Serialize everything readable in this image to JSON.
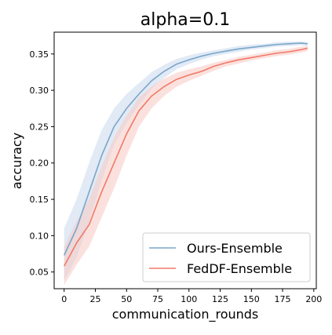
{
  "chart_data": {
    "type": "line",
    "title": "alpha=0.1",
    "xlabel": "communication_rounds",
    "ylabel": "accuracy",
    "xlim": [
      -8,
      202
    ],
    "ylim": [
      0.027,
      0.38
    ],
    "xticks": [
      0,
      25,
      50,
      75,
      100,
      125,
      150,
      175,
      200
    ],
    "xtick_labels": [
      "0",
      "25",
      "50",
      "75",
      "100",
      "125",
      "150",
      "175",
      "200"
    ],
    "yticks": [
      0.05,
      0.1,
      0.15,
      0.2,
      0.25,
      0.3,
      0.35
    ],
    "ytick_labels": [
      "0.05",
      "0.10",
      "0.15",
      "0.20",
      "0.25",
      "0.30",
      "0.35"
    ],
    "grid": false,
    "legend_position": "lower-right",
    "series": [
      {
        "name": "Ours-Ensemble",
        "color": "#7aa6c9",
        "band_color": "#c8d9ec",
        "x": [
          0,
          10,
          20,
          30,
          40,
          50,
          60,
          70,
          80,
          90,
          100,
          110,
          120,
          130,
          140,
          150,
          160,
          170,
          180,
          190,
          195
        ],
        "y": [
          0.073,
          0.11,
          0.16,
          0.21,
          0.25,
          0.275,
          0.295,
          0.313,
          0.326,
          0.336,
          0.342,
          0.347,
          0.351,
          0.354,
          0.357,
          0.359,
          0.361,
          0.363,
          0.364,
          0.365,
          0.364
        ],
        "lower": [
          0.038,
          0.07,
          0.12,
          0.175,
          0.225,
          0.255,
          0.28,
          0.302,
          0.317,
          0.329,
          0.336,
          0.342,
          0.347,
          0.35,
          0.353,
          0.356,
          0.358,
          0.36,
          0.361,
          0.362,
          0.361
        ],
        "upper": [
          0.11,
          0.15,
          0.2,
          0.245,
          0.275,
          0.295,
          0.31,
          0.325,
          0.335,
          0.343,
          0.348,
          0.352,
          0.355,
          0.358,
          0.361,
          0.363,
          0.364,
          0.366,
          0.367,
          0.367,
          0.366
        ]
      },
      {
        "name": "FedDF-Ensemble",
        "color": "#f07a68",
        "band_color": "#f8c9c2",
        "x": [
          0,
          10,
          20,
          30,
          40,
          50,
          60,
          70,
          80,
          90,
          100,
          110,
          120,
          130,
          140,
          150,
          160,
          170,
          180,
          190,
          195
        ],
        "y": [
          0.058,
          0.09,
          0.115,
          0.16,
          0.2,
          0.24,
          0.272,
          0.292,
          0.305,
          0.315,
          0.321,
          0.326,
          0.333,
          0.338,
          0.342,
          0.345,
          0.348,
          0.351,
          0.353,
          0.356,
          0.358
        ],
        "lower": [
          0.032,
          0.06,
          0.085,
          0.125,
          0.165,
          0.21,
          0.25,
          0.275,
          0.292,
          0.305,
          0.313,
          0.32,
          0.327,
          0.333,
          0.337,
          0.341,
          0.344,
          0.347,
          0.349,
          0.352,
          0.354
        ],
        "upper": [
          0.085,
          0.12,
          0.15,
          0.195,
          0.235,
          0.265,
          0.29,
          0.305,
          0.316,
          0.324,
          0.329,
          0.333,
          0.338,
          0.342,
          0.346,
          0.349,
          0.352,
          0.355,
          0.357,
          0.36,
          0.361
        ]
      }
    ]
  }
}
